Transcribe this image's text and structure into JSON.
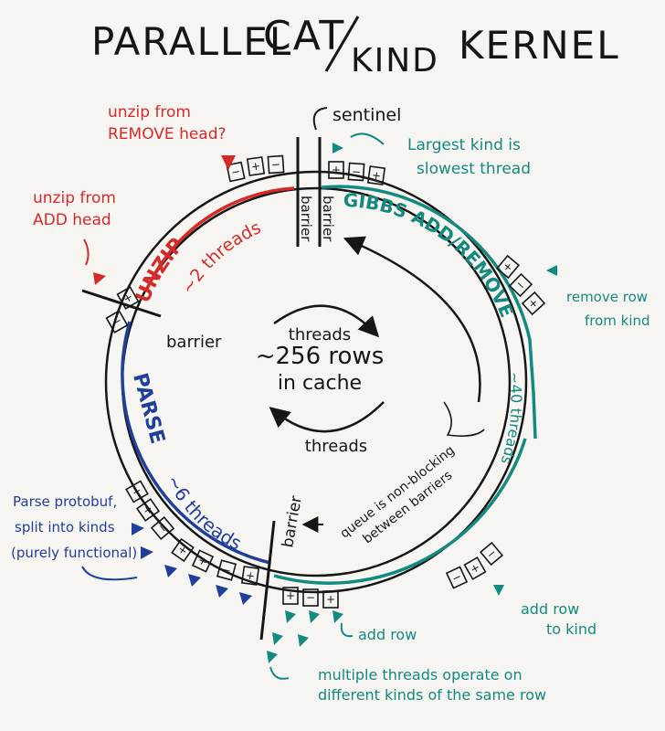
{
  "title": {
    "part1": "PARALLEL",
    "part2": "CAT",
    "part3": "KIND",
    "part4": "KERNEL"
  },
  "ring": {
    "center_line1": "~256 rows",
    "center_line2": "in cache",
    "threads_top": "threads",
    "threads_bottom": "threads"
  },
  "stages": {
    "unzip": "UNZIP",
    "unzip_threads": "~2 threads",
    "gibbs": "GIBBS ADD/REMOVE",
    "gibbs_threads": "~40 threads",
    "parse": "PARSE",
    "parse_threads": "~6 threads"
  },
  "markers": {
    "sentinel": "sentinel",
    "barrier_left": "barrier",
    "barrier_right": "barrier",
    "barrier_side": "barrier",
    "barrier_bottom": "barrier",
    "plus": "+",
    "minus": "−"
  },
  "notes": {
    "unzip_remove": [
      "unzip from",
      "REMOVE head?"
    ],
    "unzip_add": [
      "unzip from",
      "ADD head"
    ],
    "largest_kind": [
      "Largest kind is",
      "slowest thread"
    ],
    "remove_row": [
      "remove row",
      "from kind"
    ],
    "queue": [
      "queue is non-blocking",
      "between barriers"
    ],
    "add_row_kind": [
      "add row",
      "to kind"
    ],
    "add_row": "add row",
    "multiple_threads": [
      "multiple threads operate on",
      "different kinds of the same row"
    ],
    "parse_protobuf": [
      "Parse protobuf,",
      "split into kinds",
      "(purely functional)"
    ]
  },
  "colors": {
    "ink": "#161616",
    "red": "#d42a2a",
    "teal": "#138a80",
    "blue": "#1f3f9a",
    "board": "#f6f5f1"
  }
}
